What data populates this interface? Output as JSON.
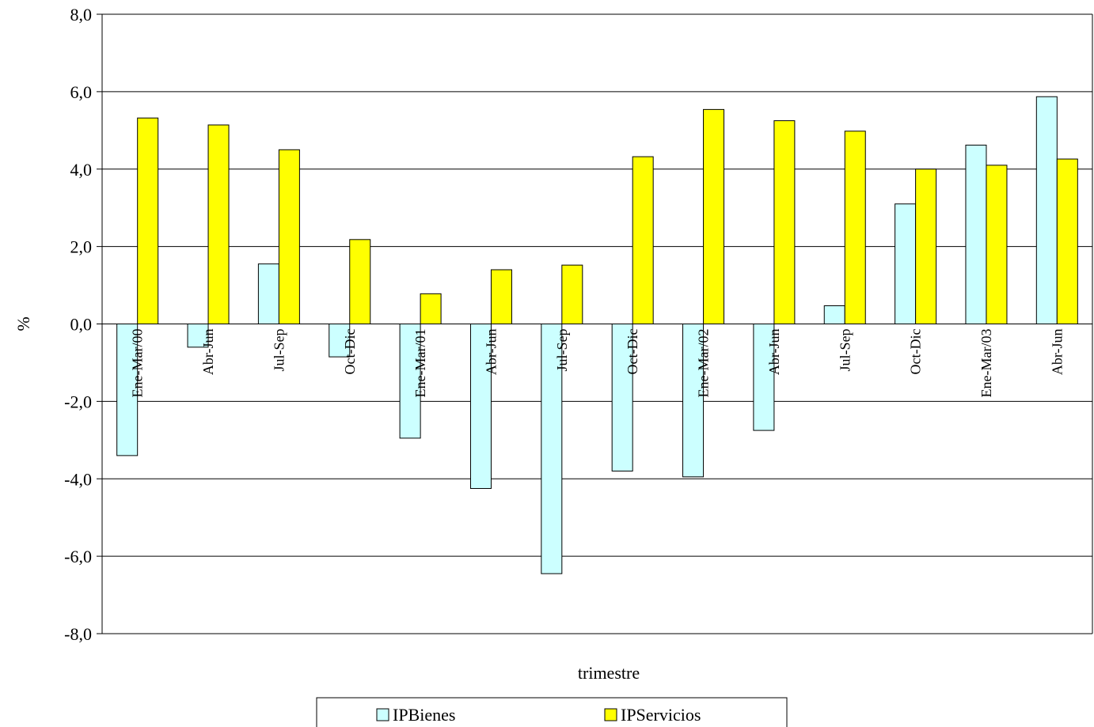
{
  "chart_data": {
    "type": "bar",
    "title": "",
    "xlabel": "trimestre",
    "ylabel": "%",
    "ylim": [
      -8,
      8
    ],
    "yticks": [
      8,
      6,
      4,
      2,
      0,
      -2,
      -4,
      -6,
      -8
    ],
    "ytick_labels": [
      "8,0",
      "6,0",
      "4,0",
      "2,0",
      "0,0",
      "-2,0",
      "-4,0",
      "-6,0",
      "-8,0"
    ],
    "grid": true,
    "legend_position": "bottom",
    "categories": [
      "Ene-Mar/00",
      "Abr-Jun",
      "Jul-Sep",
      "Oct-Dic",
      "Ene-Mar/01",
      "Abr-Jun",
      "Jul-Sep",
      "Oct-Dic",
      "Ene-Mar/02",
      "Abr-Jun",
      "Jul-Sep",
      "Oct-Dic",
      "Ene-Mar/03",
      "Abr-Jun"
    ],
    "series": [
      {
        "name": "IPBienes",
        "color": "#ccffff",
        "values": [
          -3.4,
          -0.6,
          1.55,
          -0.85,
          -2.95,
          -4.25,
          -6.45,
          -3.8,
          -3.95,
          -2.75,
          0.47,
          3.1,
          4.62,
          5.87
        ]
      },
      {
        "name": "IPServicios",
        "color": "#ffff00",
        "values": [
          5.32,
          5.14,
          4.5,
          2.18,
          0.78,
          1.4,
          1.52,
          4.32,
          5.54,
          5.25,
          4.98,
          4.0,
          4.1,
          4.26
        ]
      }
    ]
  }
}
